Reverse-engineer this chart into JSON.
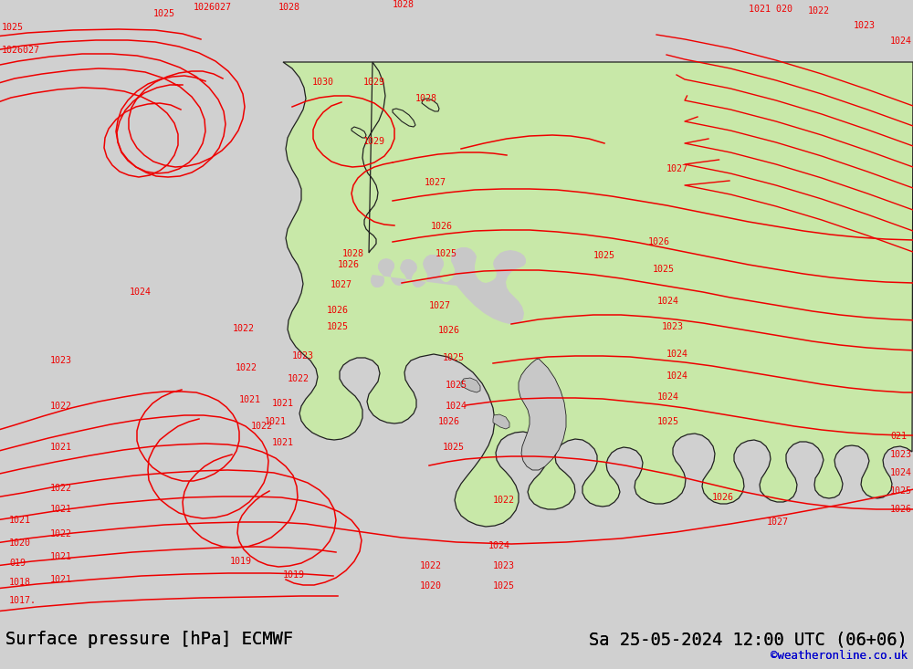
{
  "title_left": "Surface pressure [hPa] ECMWF",
  "title_right": "Sa 25-05-2024 12:00 UTC (06+06)",
  "watermark": "©weatheronline.co.uk",
  "bg_color": "#d0d0d0",
  "sea_color": "#d0d0d0",
  "land_green": "#c8e8a8",
  "land_gray": "#c8c8c8",
  "coast_color": "#202020",
  "contour_color": "#ee0000",
  "label_color": "#ee0000",
  "title_color": "#000000",
  "watermark_color": "#0000cc",
  "bottom_bar_color": "#d0d0d0",
  "bottom_bar_height": 50,
  "fig_w": 10.0,
  "fig_h": 7.33,
  "dpi": 100
}
